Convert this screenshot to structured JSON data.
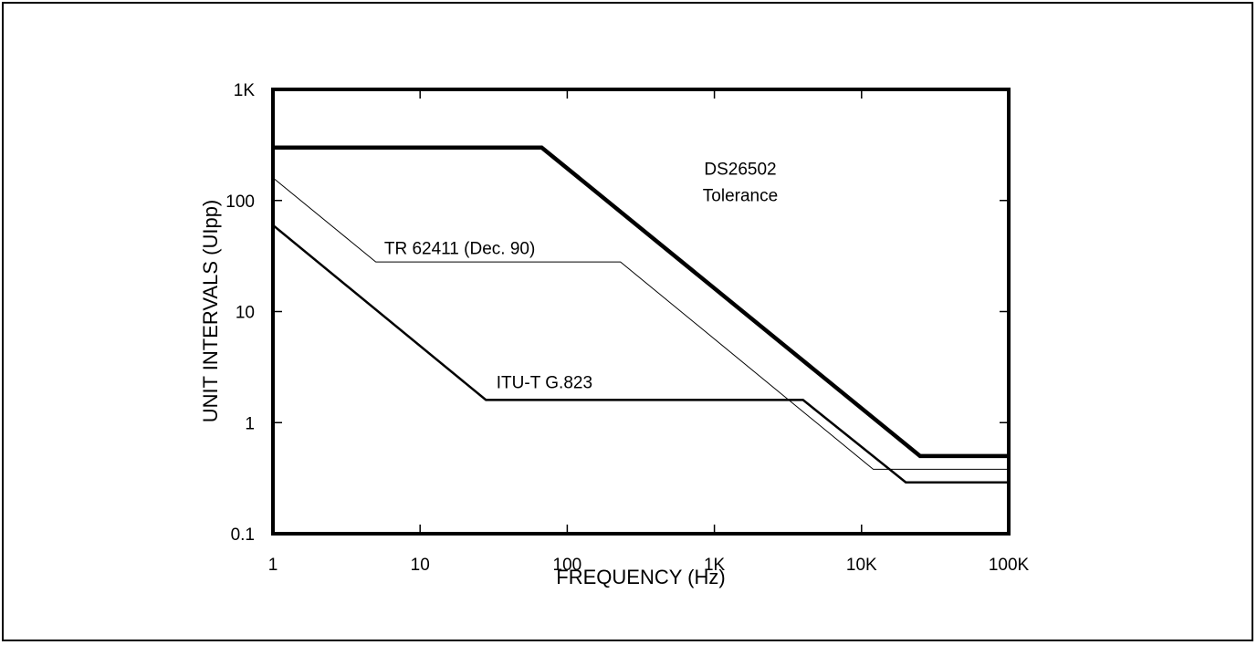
{
  "chart_data": {
    "type": "line",
    "title": "",
    "xlabel": "FREQUENCY (Hz)",
    "ylabel": "UNIT INTERVALS (UIpp)",
    "xscale": "log",
    "yscale": "log",
    "xlim": [
      1,
      100000
    ],
    "ylim": [
      0.1,
      1000
    ],
    "grid": false,
    "x_ticks": [
      {
        "value": 1,
        "label": "1"
      },
      {
        "value": 10,
        "label": "10"
      },
      {
        "value": 100,
        "label": "100"
      },
      {
        "value": 1000,
        "label": "1K"
      },
      {
        "value": 10000,
        "label": "10K"
      },
      {
        "value": 100000,
        "label": "100K"
      }
    ],
    "y_ticks": [
      {
        "value": 0.1,
        "label": "0.1"
      },
      {
        "value": 1,
        "label": "1"
      },
      {
        "value": 10,
        "label": "10"
      },
      {
        "value": 100,
        "label": "100"
      },
      {
        "value": 1000,
        "label": "1K"
      }
    ],
    "series": [
      {
        "points": [
          [
            1,
            300
          ],
          [
            67,
            300
          ],
          [
            25000,
            0.5
          ],
          [
            100000,
            0.5
          ]
        ],
        "annotation": [
          "DS26502",
          "Tolerance"
        ],
        "color": "#000000",
        "weight": "heavy"
      },
      {
        "points": [
          [
            1,
            160
          ],
          [
            5,
            28
          ],
          [
            230,
            28
          ],
          [
            12000,
            0.38
          ],
          [
            100000,
            0.38
          ]
        ],
        "annotation": [
          "TR 62411 (Dec. 90)"
        ],
        "color": "#000000",
        "weight": "thin"
      },
      {
        "points": [
          [
            1,
            60
          ],
          [
            28,
            1.6
          ],
          [
            4000,
            1.6
          ],
          [
            20000,
            0.29
          ],
          [
            100000,
            0.29
          ]
        ],
        "annotation": [
          "ITU-T G.823"
        ],
        "color": "#000000",
        "weight": "medium"
      }
    ]
  }
}
